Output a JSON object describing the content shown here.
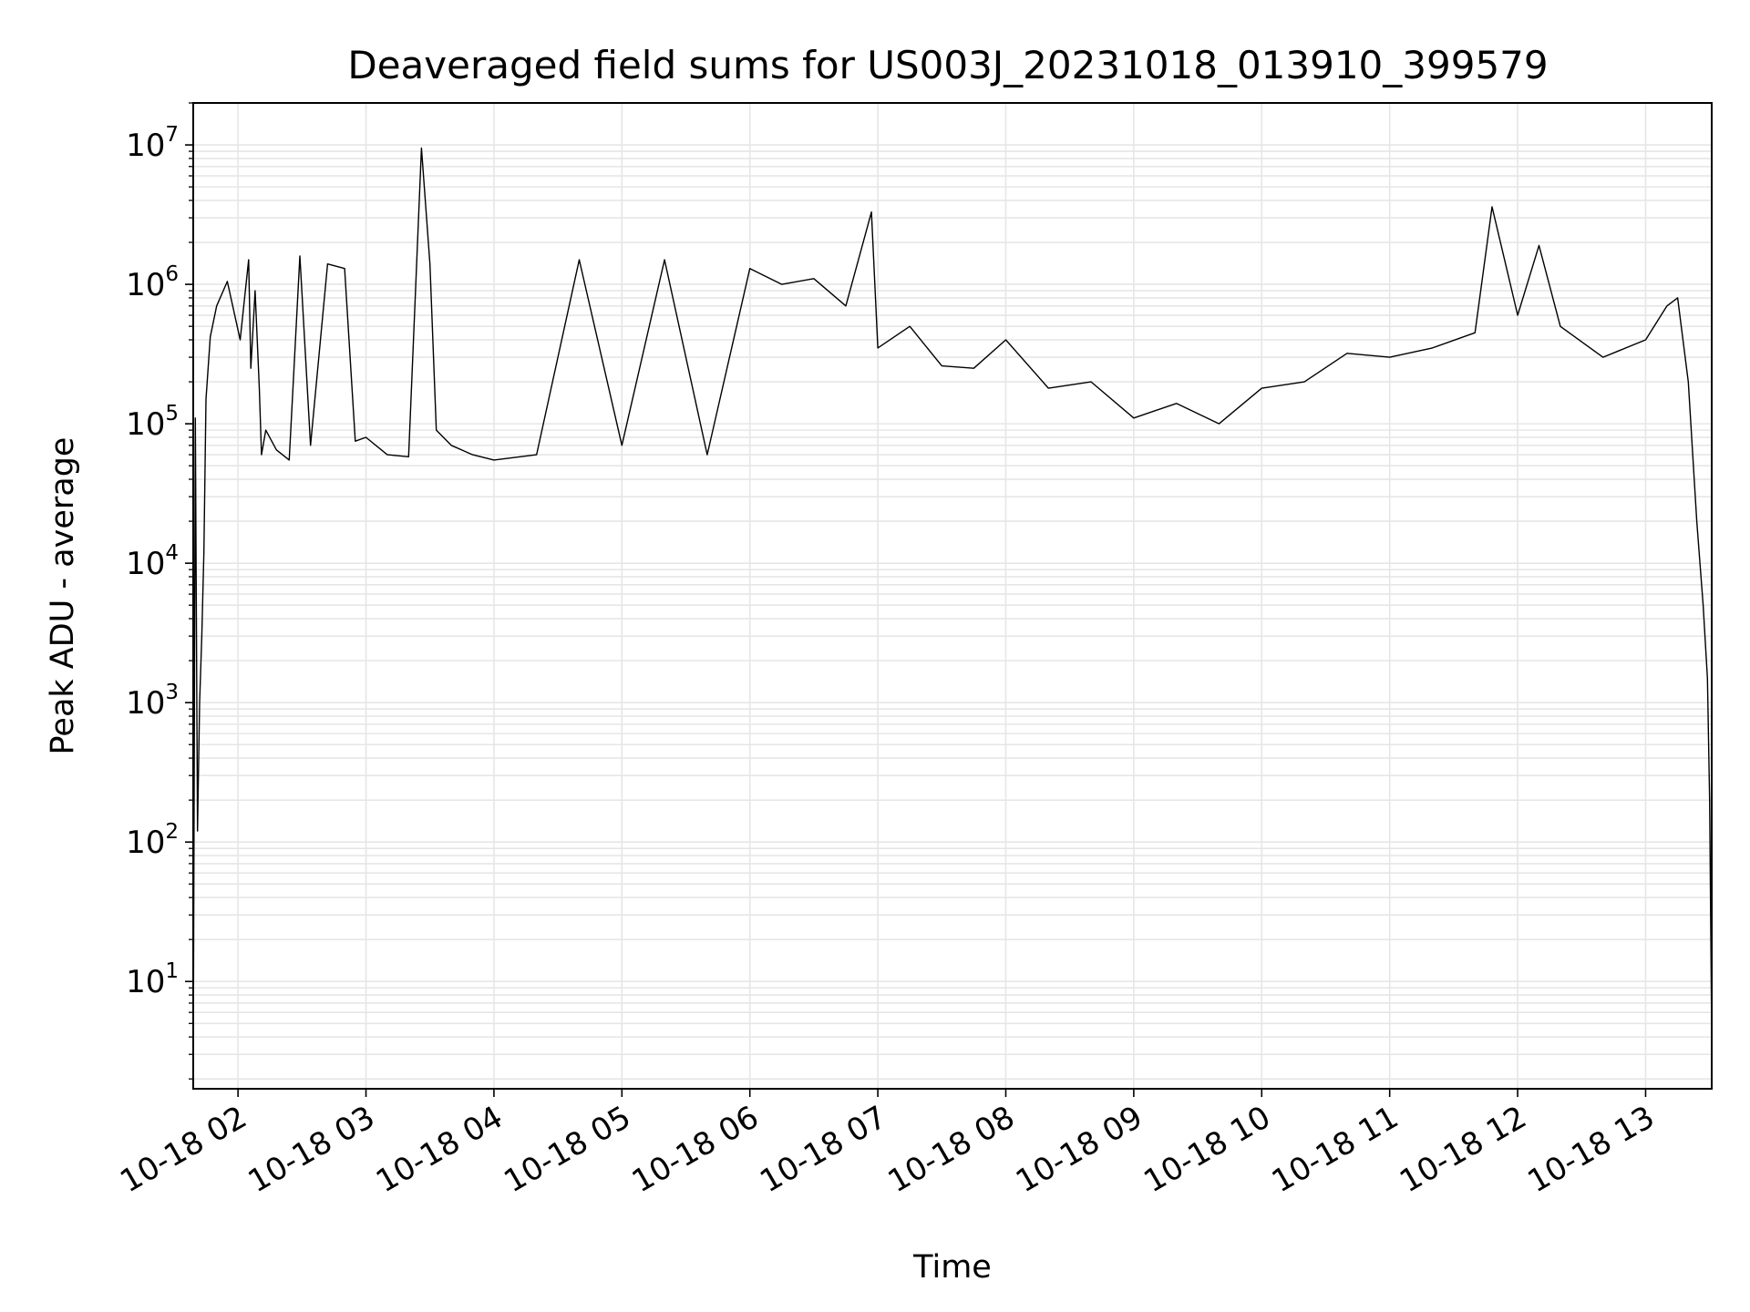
{
  "chart_data": {
    "type": "line",
    "title": "Deaveraged field sums for US003J_20231018_013910_399579",
    "xlabel": "Time",
    "ylabel": "Peak ADU - average",
    "yscale": "log",
    "ylim": [
      1.7,
      20000000
    ],
    "xlim": [
      "2023-10-18 01:39",
      "2023-10-18 13:31"
    ],
    "grid": true,
    "grid_color": "#e6e6e6",
    "line_color": "#000000",
    "x_tick_labels": [
      "10-18 02",
      "10-18 03",
      "10-18 04",
      "10-18 05",
      "10-18 06",
      "10-18 07",
      "10-18 08",
      "10-18 09",
      "10-18 10",
      "10-18 11",
      "10-18 12",
      "10-18 13"
    ],
    "x_ticks": [
      "2023-10-18 02:00",
      "2023-10-18 03:00",
      "2023-10-18 04:00",
      "2023-10-18 05:00",
      "2023-10-18 06:00",
      "2023-10-18 07:00",
      "2023-10-18 08:00",
      "2023-10-18 09:00",
      "2023-10-18 10:00",
      "2023-10-18 11:00",
      "2023-10-18 12:00",
      "2023-10-18 13:00"
    ],
    "y_ticks": [
      {
        "base": "10",
        "exp": "1",
        "value": 10
      },
      {
        "base": "10",
        "exp": "2",
        "value": 100
      },
      {
        "base": "10",
        "exp": "3",
        "value": 1000
      },
      {
        "base": "10",
        "exp": "4",
        "value": 10000
      },
      {
        "base": "10",
        "exp": "5",
        "value": 100000
      },
      {
        "base": "10",
        "exp": "6",
        "value": 1000000
      },
      {
        "base": "10",
        "exp": "7",
        "value": 10000000
      }
    ],
    "series": [
      {
        "x": [
          "2023-10-18 01:39",
          "2023-10-18 01:40",
          "2023-10-18 01:41",
          "2023-10-18 01:42",
          "2023-10-18 01:43",
          "2023-10-18 01:44",
          "2023-10-18 01:45",
          "2023-10-18 01:47",
          "2023-10-18 01:50",
          "2023-10-18 01:55",
          "2023-10-18 02:01",
          "2023-10-18 02:05",
          "2023-10-18 02:06",
          "2023-10-18 02:08",
          "2023-10-18 02:10",
          "2023-10-18 02:11",
          "2023-10-18 02:13",
          "2023-10-18 02:18",
          "2023-10-18 02:24",
          "2023-10-18 02:29",
          "2023-10-18 02:34",
          "2023-10-18 02:42",
          "2023-10-18 02:50",
          "2023-10-18 02:55",
          "2023-10-18 03:00",
          "2023-10-18 03:10",
          "2023-10-18 03:20",
          "2023-10-18 03:26",
          "2023-10-18 03:30",
          "2023-10-18 03:33",
          "2023-10-18 03:40",
          "2023-10-18 03:50",
          "2023-10-18 04:00",
          "2023-10-18 04:20",
          "2023-10-18 04:40",
          "2023-10-18 05:00",
          "2023-10-18 05:20",
          "2023-10-18 05:40",
          "2023-10-18 06:00",
          "2023-10-18 06:15",
          "2023-10-18 06:30",
          "2023-10-18 06:45",
          "2023-10-18 06:57",
          "2023-10-18 07:00",
          "2023-10-18 07:15",
          "2023-10-18 07:30",
          "2023-10-18 07:45",
          "2023-10-18 08:00",
          "2023-10-18 08:20",
          "2023-10-18 08:40",
          "2023-10-18 09:00",
          "2023-10-18 09:20",
          "2023-10-18 09:40",
          "2023-10-18 10:00",
          "2023-10-18 10:20",
          "2023-10-18 10:40",
          "2023-10-18 11:00",
          "2023-10-18 11:20",
          "2023-10-18 11:40",
          "2023-10-18 11:48",
          "2023-10-18 12:00",
          "2023-10-18 12:10",
          "2023-10-18 12:20",
          "2023-10-18 12:40",
          "2023-10-18 13:00",
          "2023-10-18 13:10",
          "2023-10-18 13:15",
          "2023-10-18 13:20",
          "2023-10-18 13:24",
          "2023-10-18 13:27",
          "2023-10-18 13:29",
          "2023-10-18 13:30",
          "2023-10-18 13:31"
        ],
        "y": [
          2,
          110000,
          120,
          1000,
          3000,
          12000,
          150000,
          420000,
          700000,
          1050000,
          400000,
          1500000,
          250000,
          900000,
          180000,
          60000,
          90000,
          65000,
          55000,
          1600000,
          70000,
          1400000,
          1300000,
          75000,
          80000,
          60000,
          58000,
          9500000,
          1400000,
          90000,
          70000,
          60000,
          55000,
          60000,
          1500000,
          70000,
          1500000,
          60000,
          1300000,
          1000000,
          1100000,
          700000,
          3300000,
          350000,
          500000,
          260000,
          250000,
          400000,
          180000,
          200000,
          110000,
          140000,
          100000,
          180000,
          200000,
          320000,
          300000,
          350000,
          450000,
          3600000,
          600000,
          1900000,
          500000,
          300000,
          400000,
          700000,
          800000,
          200000,
          20000,
          5000,
          1500,
          200,
          4
        ]
      }
    ]
  }
}
